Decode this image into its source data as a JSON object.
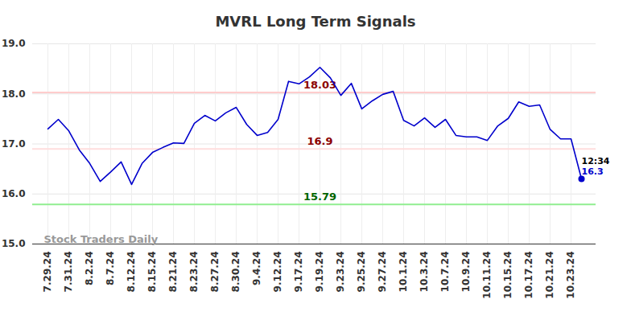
{
  "chart_data": {
    "type": "line",
    "title": "MVRL Long Term Signals",
    "categories": [
      "7.29.24",
      null,
      "7.31.24",
      null,
      "8.2.24",
      null,
      "8.7.24",
      null,
      "8.12.24",
      null,
      "8.15.24",
      null,
      "8.21.24",
      null,
      "8.23.24",
      null,
      "8.27.24",
      null,
      "8.30.24",
      null,
      "9.4.24",
      null,
      "9.12.24",
      null,
      "9.17.24",
      null,
      "9.19.24",
      null,
      "9.23.24",
      null,
      "9.25.24",
      null,
      "9.27.24",
      null,
      "10.1.24",
      null,
      "10.3.24",
      null,
      "10.7.24",
      null,
      "10.9.24",
      null,
      "10.11.24",
      null,
      "10.15.24",
      null,
      "10.17.24",
      null,
      "10.21.24",
      null,
      "10.23.24",
      null
    ],
    "values": [
      17.3,
      17.49,
      17.26,
      16.88,
      16.61,
      16.25,
      16.44,
      16.64,
      16.19,
      16.61,
      16.83,
      16.93,
      17.02,
      17.01,
      17.41,
      17.57,
      17.46,
      17.62,
      17.73,
      17.39,
      17.17,
      17.23,
      17.49,
      18.25,
      18.2,
      18.34,
      18.53,
      18.32,
      17.97,
      18.21,
      17.7,
      17.86,
      17.99,
      18.05,
      17.47,
      17.36,
      17.52,
      17.33,
      17.49,
      17.17,
      17.14,
      17.14,
      17.07,
      17.36,
      17.51,
      17.84,
      17.75,
      17.78,
      17.29,
      17.1,
      17.1,
      16.3
    ],
    "color": "#0000cc",
    "ylim": [
      15,
      19
    ],
    "yticks": [
      15,
      16,
      17,
      18,
      19
    ],
    "grid": true,
    "reference_lines": [
      {
        "value": 18.03,
        "label": "18.03",
        "color": "#ffcccc",
        "label_color": "#8b0000"
      },
      {
        "value": 16.9,
        "label": "16.9",
        "color": "#ffdddd",
        "label_color": "#8b0000"
      },
      {
        "value": 15.79,
        "label": "15.79",
        "color": "#90ee90",
        "label_color": "#006400"
      }
    ],
    "last_point_labels": {
      "time": "12:34",
      "value": "16.3"
    },
    "watermark": "Stock Traders Daily"
  }
}
